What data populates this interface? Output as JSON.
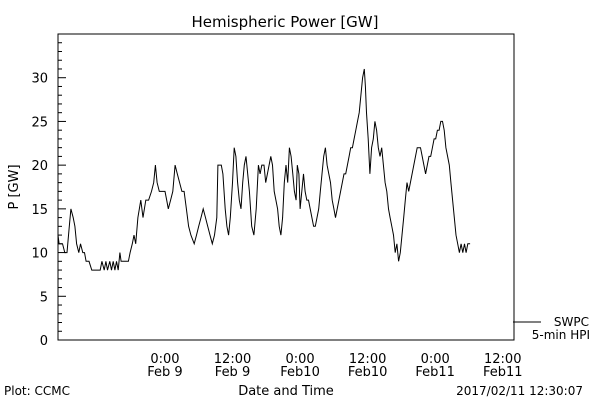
{
  "chart_data": {
    "type": "line",
    "title": "Hemispheric Power [GW]",
    "ylabel": "P [GW]",
    "xlabel": "Date and Time",
    "ylim": [
      0,
      35
    ],
    "xlim": [
      -19,
      62
    ],
    "y_ticks": [
      0,
      5,
      10,
      15,
      20,
      25,
      30
    ],
    "x_ticks": [
      {
        "x": 0,
        "line1": "0:00",
        "line2": "Feb 9"
      },
      {
        "x": 12,
        "line1": "12:00",
        "line2": "Feb 9"
      },
      {
        "x": 24,
        "line1": "0:00",
        "line2": "Feb10"
      },
      {
        "x": 36,
        "line1": "12:00",
        "line2": "Feb10"
      },
      {
        "x": 48,
        "line1": "0:00",
        "line2": "Feb11"
      },
      {
        "x": 60,
        "line1": "12:00",
        "line2": "Feb11"
      }
    ],
    "grid": false,
    "legend": {
      "position": "bottom-right",
      "source": "SWPC",
      "series": "5-min HPI"
    },
    "series": [
      {
        "name": "5-min HPI",
        "color": "#000000",
        "points": [
          [
            -19,
            12
          ],
          [
            -18.8,
            11
          ],
          [
            -18.2,
            11
          ],
          [
            -17.8,
            10
          ],
          [
            -17.4,
            10
          ],
          [
            -17,
            13
          ],
          [
            -16.7,
            15
          ],
          [
            -16.3,
            14
          ],
          [
            -16,
            13
          ],
          [
            -15.7,
            11
          ],
          [
            -15.3,
            10
          ],
          [
            -15,
            11
          ],
          [
            -14.6,
            10
          ],
          [
            -14.3,
            10
          ],
          [
            -14,
            9
          ],
          [
            -13.5,
            9
          ],
          [
            -13,
            8
          ],
          [
            -12,
            8
          ],
          [
            -11.5,
            8
          ],
          [
            -11.2,
            9
          ],
          [
            -10.8,
            8
          ],
          [
            -10.5,
            9
          ],
          [
            -10.2,
            8
          ],
          [
            -9.8,
            9
          ],
          [
            -9.5,
            8
          ],
          [
            -9.2,
            9
          ],
          [
            -8.9,
            8
          ],
          [
            -8.6,
            9
          ],
          [
            -8.3,
            8
          ],
          [
            -8,
            10
          ],
          [
            -7.8,
            9
          ],
          [
            -7.5,
            9
          ],
          [
            -7,
            9
          ],
          [
            -6.5,
            9
          ],
          [
            -6.2,
            10
          ],
          [
            -5.8,
            11
          ],
          [
            -5.5,
            12
          ],
          [
            -5.2,
            11
          ],
          [
            -4.8,
            14
          ],
          [
            -4.3,
            16
          ],
          [
            -3.9,
            14
          ],
          [
            -3.4,
            16
          ],
          [
            -2.9,
            16
          ],
          [
            -2.4,
            17
          ],
          [
            -2,
            18
          ],
          [
            -1.7,
            20
          ],
          [
            -1.4,
            18
          ],
          [
            -1,
            17
          ],
          [
            -0.5,
            17
          ],
          [
            0,
            17
          ],
          [
            0.3,
            16
          ],
          [
            0.6,
            15
          ],
          [
            1,
            16
          ],
          [
            1.4,
            17
          ],
          [
            1.8,
            20
          ],
          [
            2.2,
            19
          ],
          [
            2.6,
            18
          ],
          [
            3,
            17
          ],
          [
            3.4,
            17
          ],
          [
            3.8,
            15
          ],
          [
            4.2,
            13
          ],
          [
            4.6,
            12
          ],
          [
            5.2,
            11
          ],
          [
            5.6,
            12
          ],
          [
            6,
            13
          ],
          [
            6.4,
            14
          ],
          [
            6.8,
            15
          ],
          [
            7.2,
            14
          ],
          [
            7.6,
            13
          ],
          [
            8,
            12
          ],
          [
            8.4,
            11
          ],
          [
            8.8,
            12
          ],
          [
            9.2,
            14
          ],
          [
            9.4,
            20
          ],
          [
            10,
            20
          ],
          [
            10.3,
            19
          ],
          [
            10.7,
            15
          ],
          [
            11,
            13
          ],
          [
            11.3,
            12
          ],
          [
            11.6,
            14
          ],
          [
            12,
            18
          ],
          [
            12.3,
            22
          ],
          [
            12.6,
            21
          ],
          [
            12.9,
            18
          ],
          [
            13.2,
            16
          ],
          [
            13.5,
            15
          ],
          [
            13.8,
            18
          ],
          [
            14.1,
            20
          ],
          [
            14.4,
            21
          ],
          [
            14.7,
            19
          ],
          [
            15,
            17
          ],
          [
            15.4,
            13
          ],
          [
            15.8,
            12
          ],
          [
            16.2,
            15
          ],
          [
            16.6,
            20
          ],
          [
            16.9,
            19
          ],
          [
            17.2,
            20
          ],
          [
            17.6,
            20
          ],
          [
            17.9,
            18
          ],
          [
            18.2,
            19
          ],
          [
            18.5,
            20
          ],
          [
            18.8,
            21
          ],
          [
            19.1,
            20
          ],
          [
            19.4,
            17
          ],
          [
            19.7,
            16
          ],
          [
            20,
            15
          ],
          [
            20.3,
            13
          ],
          [
            20.6,
            12
          ],
          [
            20.9,
            14
          ],
          [
            21.2,
            18
          ],
          [
            21.5,
            20
          ],
          [
            21.8,
            18
          ],
          [
            22.1,
            22
          ],
          [
            22.4,
            21
          ],
          [
            22.7,
            19
          ],
          [
            23,
            17
          ],
          [
            23.3,
            16
          ],
          [
            23.5,
            20
          ],
          [
            23.8,
            19
          ],
          [
            24,
            15
          ],
          [
            24.3,
            17
          ],
          [
            24.6,
            19
          ],
          [
            24.9,
            17
          ],
          [
            25.2,
            16
          ],
          [
            25.5,
            16
          ],
          [
            25.8,
            15
          ],
          [
            26.1,
            14
          ],
          [
            26.4,
            13
          ],
          [
            26.7,
            13
          ],
          [
            27,
            14
          ],
          [
            27.3,
            15
          ],
          [
            27.6,
            17
          ],
          [
            27.9,
            19
          ],
          [
            28.2,
            21
          ],
          [
            28.5,
            22
          ],
          [
            28.8,
            20
          ],
          [
            29.1,
            19
          ],
          [
            29.4,
            18
          ],
          [
            29.7,
            16
          ],
          [
            30,
            15
          ],
          [
            30.3,
            14
          ],
          [
            30.6,
            15
          ],
          [
            30.9,
            16
          ],
          [
            31.2,
            17
          ],
          [
            31.5,
            18
          ],
          [
            31.8,
            19
          ],
          [
            32.1,
            19
          ],
          [
            32.4,
            20
          ],
          [
            32.7,
            21
          ],
          [
            33,
            22
          ],
          [
            33.3,
            22
          ],
          [
            33.6,
            23
          ],
          [
            33.9,
            24
          ],
          [
            34.2,
            25
          ],
          [
            34.5,
            26
          ],
          [
            34.8,
            28
          ],
          [
            35.1,
            30
          ],
          [
            35.4,
            31
          ],
          [
            35.6,
            29
          ],
          [
            35.8,
            26
          ],
          [
            36.1,
            23
          ],
          [
            36.4,
            19
          ],
          [
            36.7,
            22
          ],
          [
            37,
            23
          ],
          [
            37.3,
            25
          ],
          [
            37.6,
            24
          ],
          [
            37.9,
            22
          ],
          [
            38.2,
            21
          ],
          [
            38.5,
            22
          ],
          [
            38.8,
            20
          ],
          [
            39.1,
            18
          ],
          [
            39.4,
            17
          ],
          [
            39.7,
            15
          ],
          [
            40,
            14
          ],
          [
            40.3,
            13
          ],
          [
            40.6,
            12
          ],
          [
            40.9,
            10
          ],
          [
            41.2,
            11
          ],
          [
            41.5,
            9
          ],
          [
            41.8,
            10
          ],
          [
            42.1,
            12
          ],
          [
            42.4,
            14
          ],
          [
            42.7,
            16
          ],
          [
            43,
            18
          ],
          [
            43.3,
            17
          ],
          [
            43.6,
            18
          ],
          [
            43.9,
            19
          ],
          [
            44.2,
            20
          ],
          [
            44.5,
            21
          ],
          [
            44.8,
            22
          ],
          [
            45.1,
            22
          ],
          [
            45.4,
            22
          ],
          [
            45.7,
            21
          ],
          [
            46,
            20
          ],
          [
            46.3,
            19
          ],
          [
            46.6,
            20
          ],
          [
            46.9,
            21
          ],
          [
            47.2,
            21
          ],
          [
            47.5,
            22
          ],
          [
            47.8,
            23
          ],
          [
            48.1,
            23
          ],
          [
            48.4,
            24
          ],
          [
            48.7,
            24
          ],
          [
            49,
            25
          ],
          [
            49.3,
            25
          ],
          [
            49.6,
            24
          ],
          [
            49.9,
            22
          ],
          [
            50.2,
            21
          ],
          [
            50.5,
            20
          ],
          [
            50.8,
            18
          ],
          [
            51.1,
            16
          ],
          [
            51.4,
            14
          ],
          [
            51.7,
            12
          ],
          [
            52,
            11
          ],
          [
            52.3,
            10
          ],
          [
            52.6,
            11
          ],
          [
            52.9,
            10
          ],
          [
            53.2,
            11
          ],
          [
            53.5,
            10
          ],
          [
            53.8,
            11
          ],
          [
            54.2,
            11
          ]
        ]
      }
    ]
  },
  "footer": {
    "plot_credit": "Plot: CCMC",
    "timestamp": "2017/02/11 12:30:07"
  }
}
